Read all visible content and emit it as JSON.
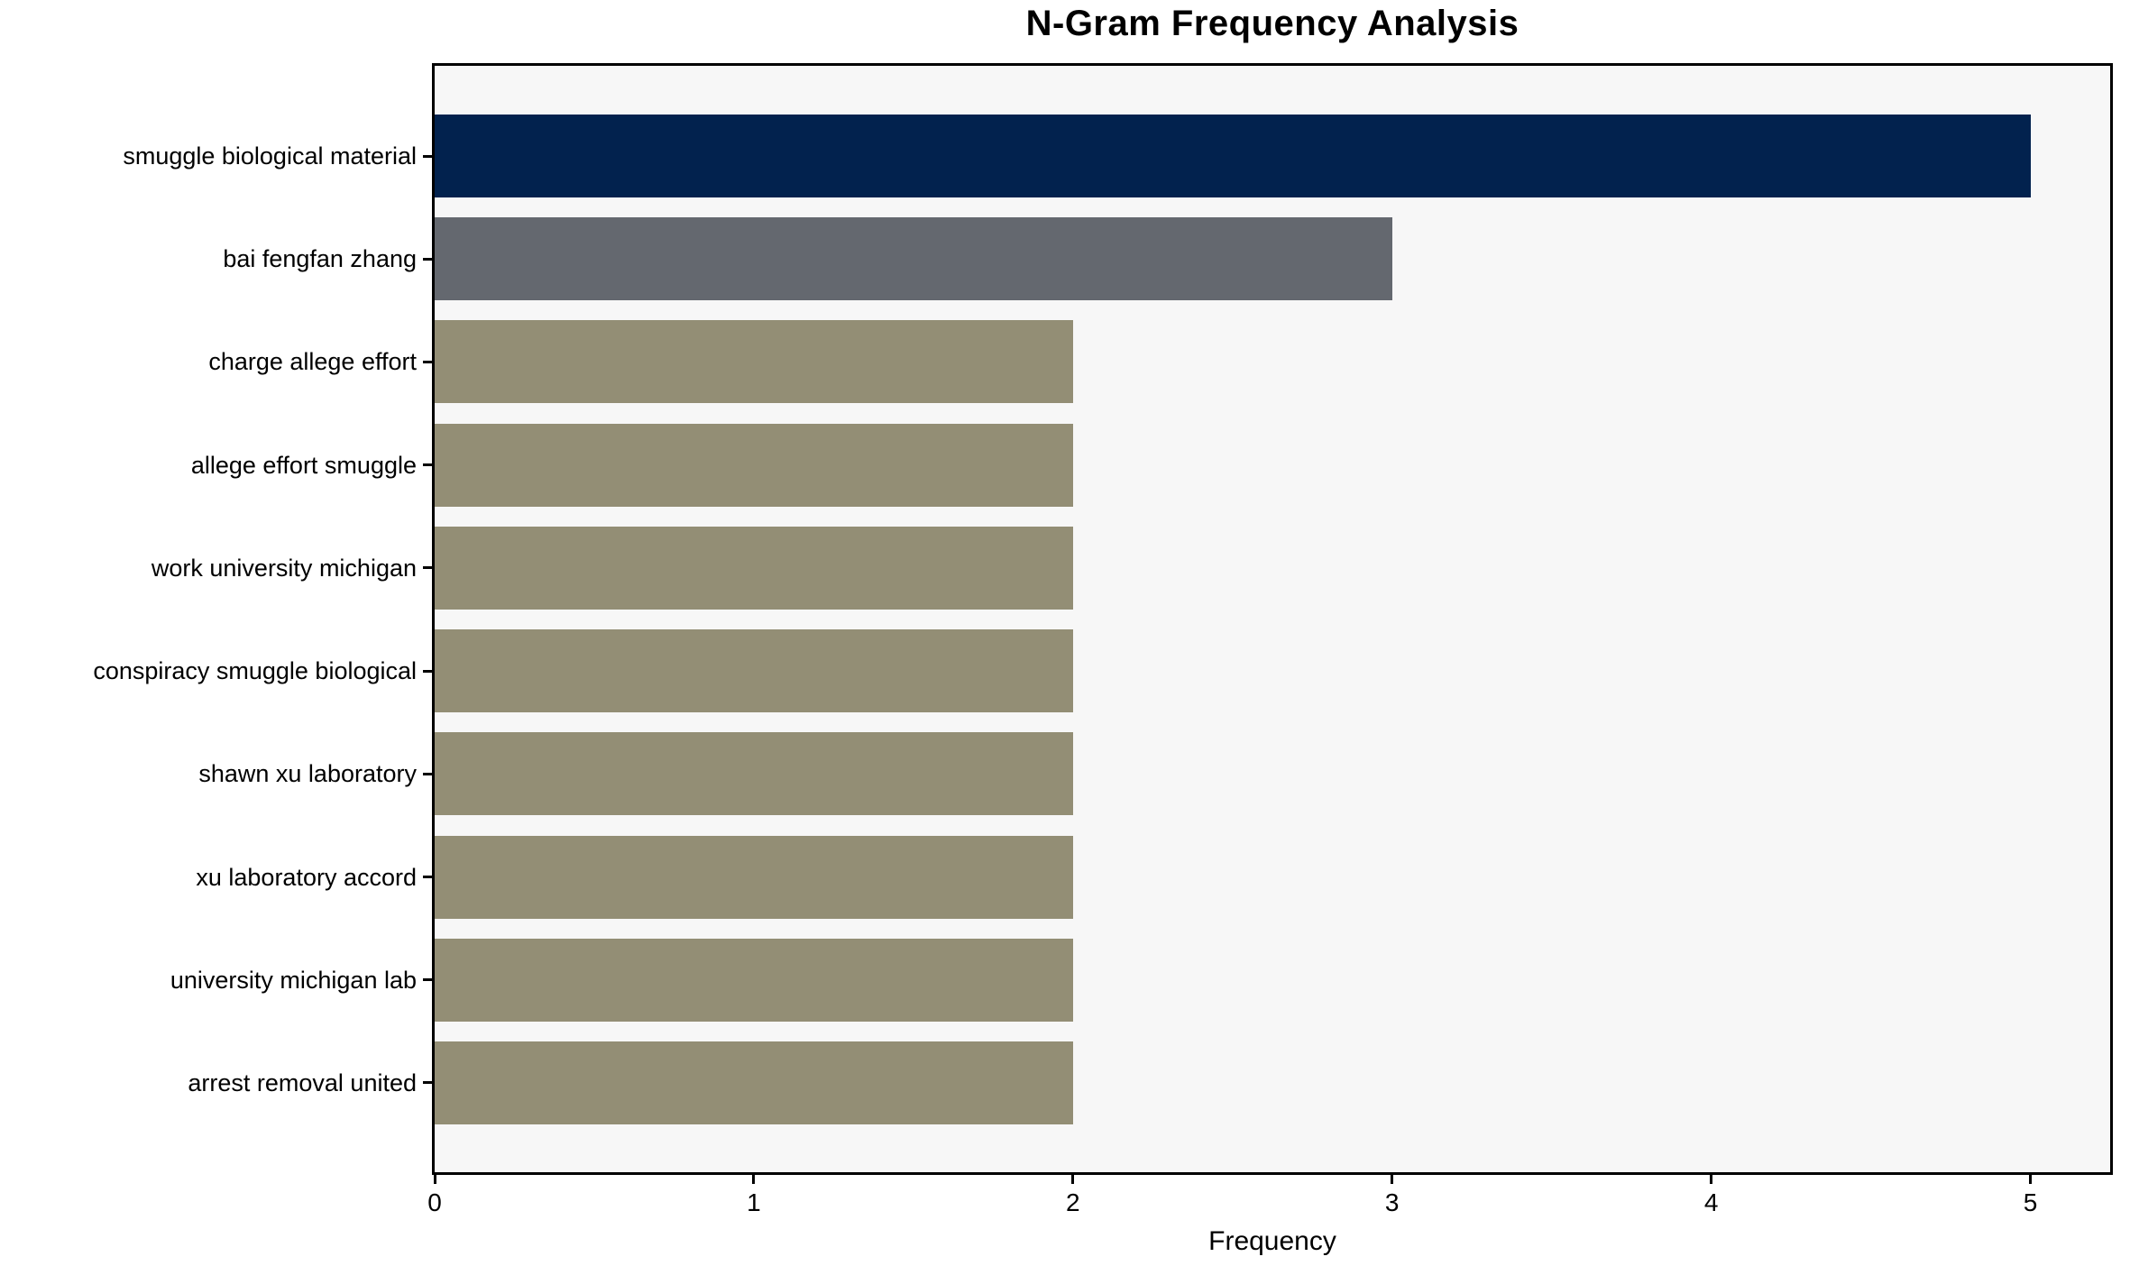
{
  "chart_data": {
    "type": "bar",
    "orientation": "horizontal",
    "title": "N-Gram Frequency Analysis",
    "xlabel": "Frequency",
    "ylabel": "",
    "categories": [
      "smuggle biological material",
      "bai fengfan zhang",
      "charge allege effort",
      "allege effort smuggle",
      "work university michigan",
      "conspiracy smuggle biological",
      "shawn xu laboratory",
      "xu laboratory accord",
      "university michigan lab",
      "arrest removal united"
    ],
    "values": [
      5,
      3,
      2,
      2,
      2,
      2,
      2,
      2,
      2,
      2
    ],
    "bar_colors": [
      "#02224e",
      "#64686f",
      "#938e75",
      "#938e75",
      "#938e75",
      "#938e75",
      "#938e75",
      "#938e75",
      "#938e75",
      "#938e75"
    ],
    "xticks": [
      0,
      1,
      2,
      3,
      4,
      5
    ],
    "xlim": [
      0,
      5.25
    ],
    "grid": false,
    "legend": null,
    "plot_background": "#f7f7f7",
    "axis_color": "#000000",
    "text_color": "#000000"
  }
}
